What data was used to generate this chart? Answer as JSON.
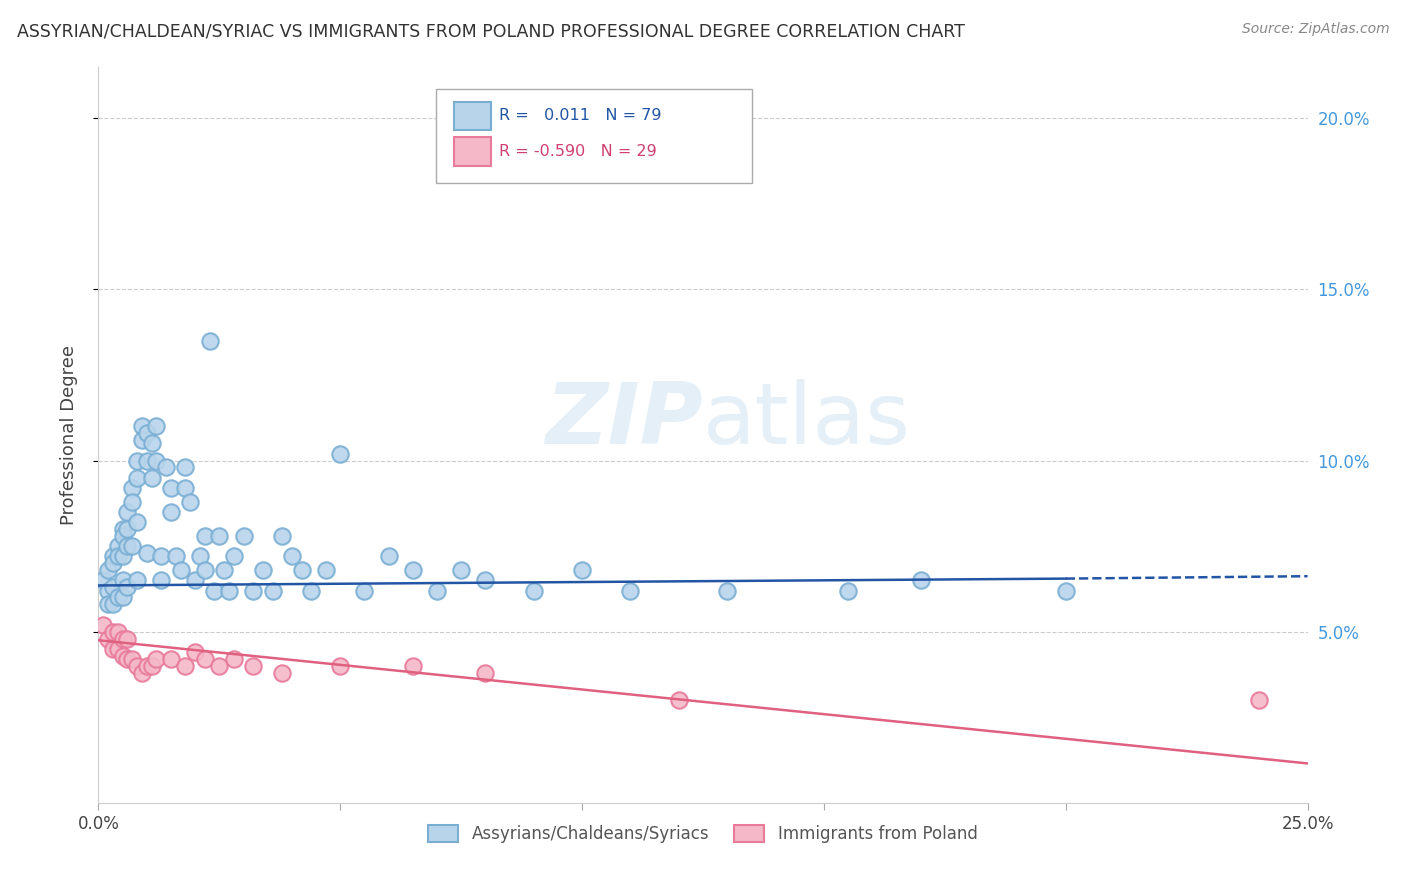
{
  "title": "ASSYRIAN/CHALDEAN/SYRIAC VS IMMIGRANTS FROM POLAND PROFESSIONAL DEGREE CORRELATION CHART",
  "source": "Source: ZipAtlas.com",
  "ylabel": "Professional Degree",
  "xlim": [
    0.0,
    0.25
  ],
  "ylim": [
    0.0,
    0.215
  ],
  "scatter_color1_face": "#b8d4eb",
  "scatter_color1_edge": "#7aafd4",
  "scatter_color2_face": "#f4b8c8",
  "scatter_color2_edge": "#e87a9a",
  "line_color1": "#2255a4",
  "line_color2": "#e06080",
  "blue_x": [
    0.001,
    0.002,
    0.002,
    0.002,
    0.003,
    0.003,
    0.003,
    0.003,
    0.004,
    0.004,
    0.004,
    0.005,
    0.005,
    0.005,
    0.005,
    0.005,
    0.006,
    0.006,
    0.006,
    0.006,
    0.007,
    0.007,
    0.007,
    0.008,
    0.008,
    0.008,
    0.008,
    0.009,
    0.009,
    0.01,
    0.01,
    0.01,
    0.011,
    0.011,
    0.012,
    0.012,
    0.013,
    0.013,
    0.014,
    0.015,
    0.015,
    0.016,
    0.017,
    0.018,
    0.018,
    0.019,
    0.02,
    0.021,
    0.022,
    0.022,
    0.023,
    0.024,
    0.025,
    0.026,
    0.027,
    0.028,
    0.03,
    0.032,
    0.034,
    0.036,
    0.038,
    0.04,
    0.042,
    0.044,
    0.047,
    0.05,
    0.055,
    0.06,
    0.065,
    0.07,
    0.075,
    0.08,
    0.09,
    0.1,
    0.11,
    0.13,
    0.155,
    0.17,
    0.2
  ],
  "blue_y": [
    0.065,
    0.068,
    0.062,
    0.058,
    0.072,
    0.07,
    0.063,
    0.058,
    0.075,
    0.072,
    0.06,
    0.08,
    0.078,
    0.072,
    0.065,
    0.06,
    0.085,
    0.08,
    0.075,
    0.063,
    0.092,
    0.088,
    0.075,
    0.1,
    0.095,
    0.082,
    0.065,
    0.11,
    0.106,
    0.108,
    0.1,
    0.073,
    0.105,
    0.095,
    0.11,
    0.1,
    0.072,
    0.065,
    0.098,
    0.092,
    0.085,
    0.072,
    0.068,
    0.098,
    0.092,
    0.088,
    0.065,
    0.072,
    0.078,
    0.068,
    0.135,
    0.062,
    0.078,
    0.068,
    0.062,
    0.072,
    0.078,
    0.062,
    0.068,
    0.062,
    0.078,
    0.072,
    0.068,
    0.062,
    0.068,
    0.102,
    0.062,
    0.072,
    0.068,
    0.062,
    0.068,
    0.065,
    0.062,
    0.068,
    0.062,
    0.062,
    0.062,
    0.065,
    0.062
  ],
  "pink_x": [
    0.001,
    0.002,
    0.003,
    0.003,
    0.004,
    0.004,
    0.005,
    0.005,
    0.006,
    0.006,
    0.007,
    0.008,
    0.009,
    0.01,
    0.011,
    0.012,
    0.015,
    0.018,
    0.02,
    0.022,
    0.025,
    0.028,
    0.032,
    0.038,
    0.05,
    0.065,
    0.08,
    0.12,
    0.24
  ],
  "pink_y": [
    0.052,
    0.048,
    0.05,
    0.045,
    0.05,
    0.045,
    0.048,
    0.043,
    0.048,
    0.042,
    0.042,
    0.04,
    0.038,
    0.04,
    0.04,
    0.042,
    0.042,
    0.04,
    0.044,
    0.042,
    0.04,
    0.042,
    0.04,
    0.038,
    0.04,
    0.04,
    0.038,
    0.03,
    0.03
  ],
  "blue_line_x0": 0.0,
  "blue_line_x1": 0.2,
  "blue_line_x2": 0.25,
  "blue_line_y0": 0.0635,
  "blue_line_y1": 0.0655,
  "blue_line_y2": 0.0662,
  "pink_line_x0": 0.0,
  "pink_line_x1": 0.25,
  "pink_line_y0": 0.0475,
  "pink_line_y1": 0.0115,
  "legend_entries": [
    "Assyrians/Chaldeans/Syriacs",
    "Immigrants from Poland"
  ],
  "right_ytick_vals": [
    0.05,
    0.1,
    0.15,
    0.2
  ],
  "right_ytick_labels": [
    "5.0%",
    "10.0%",
    "15.0%",
    "20.0%"
  ]
}
